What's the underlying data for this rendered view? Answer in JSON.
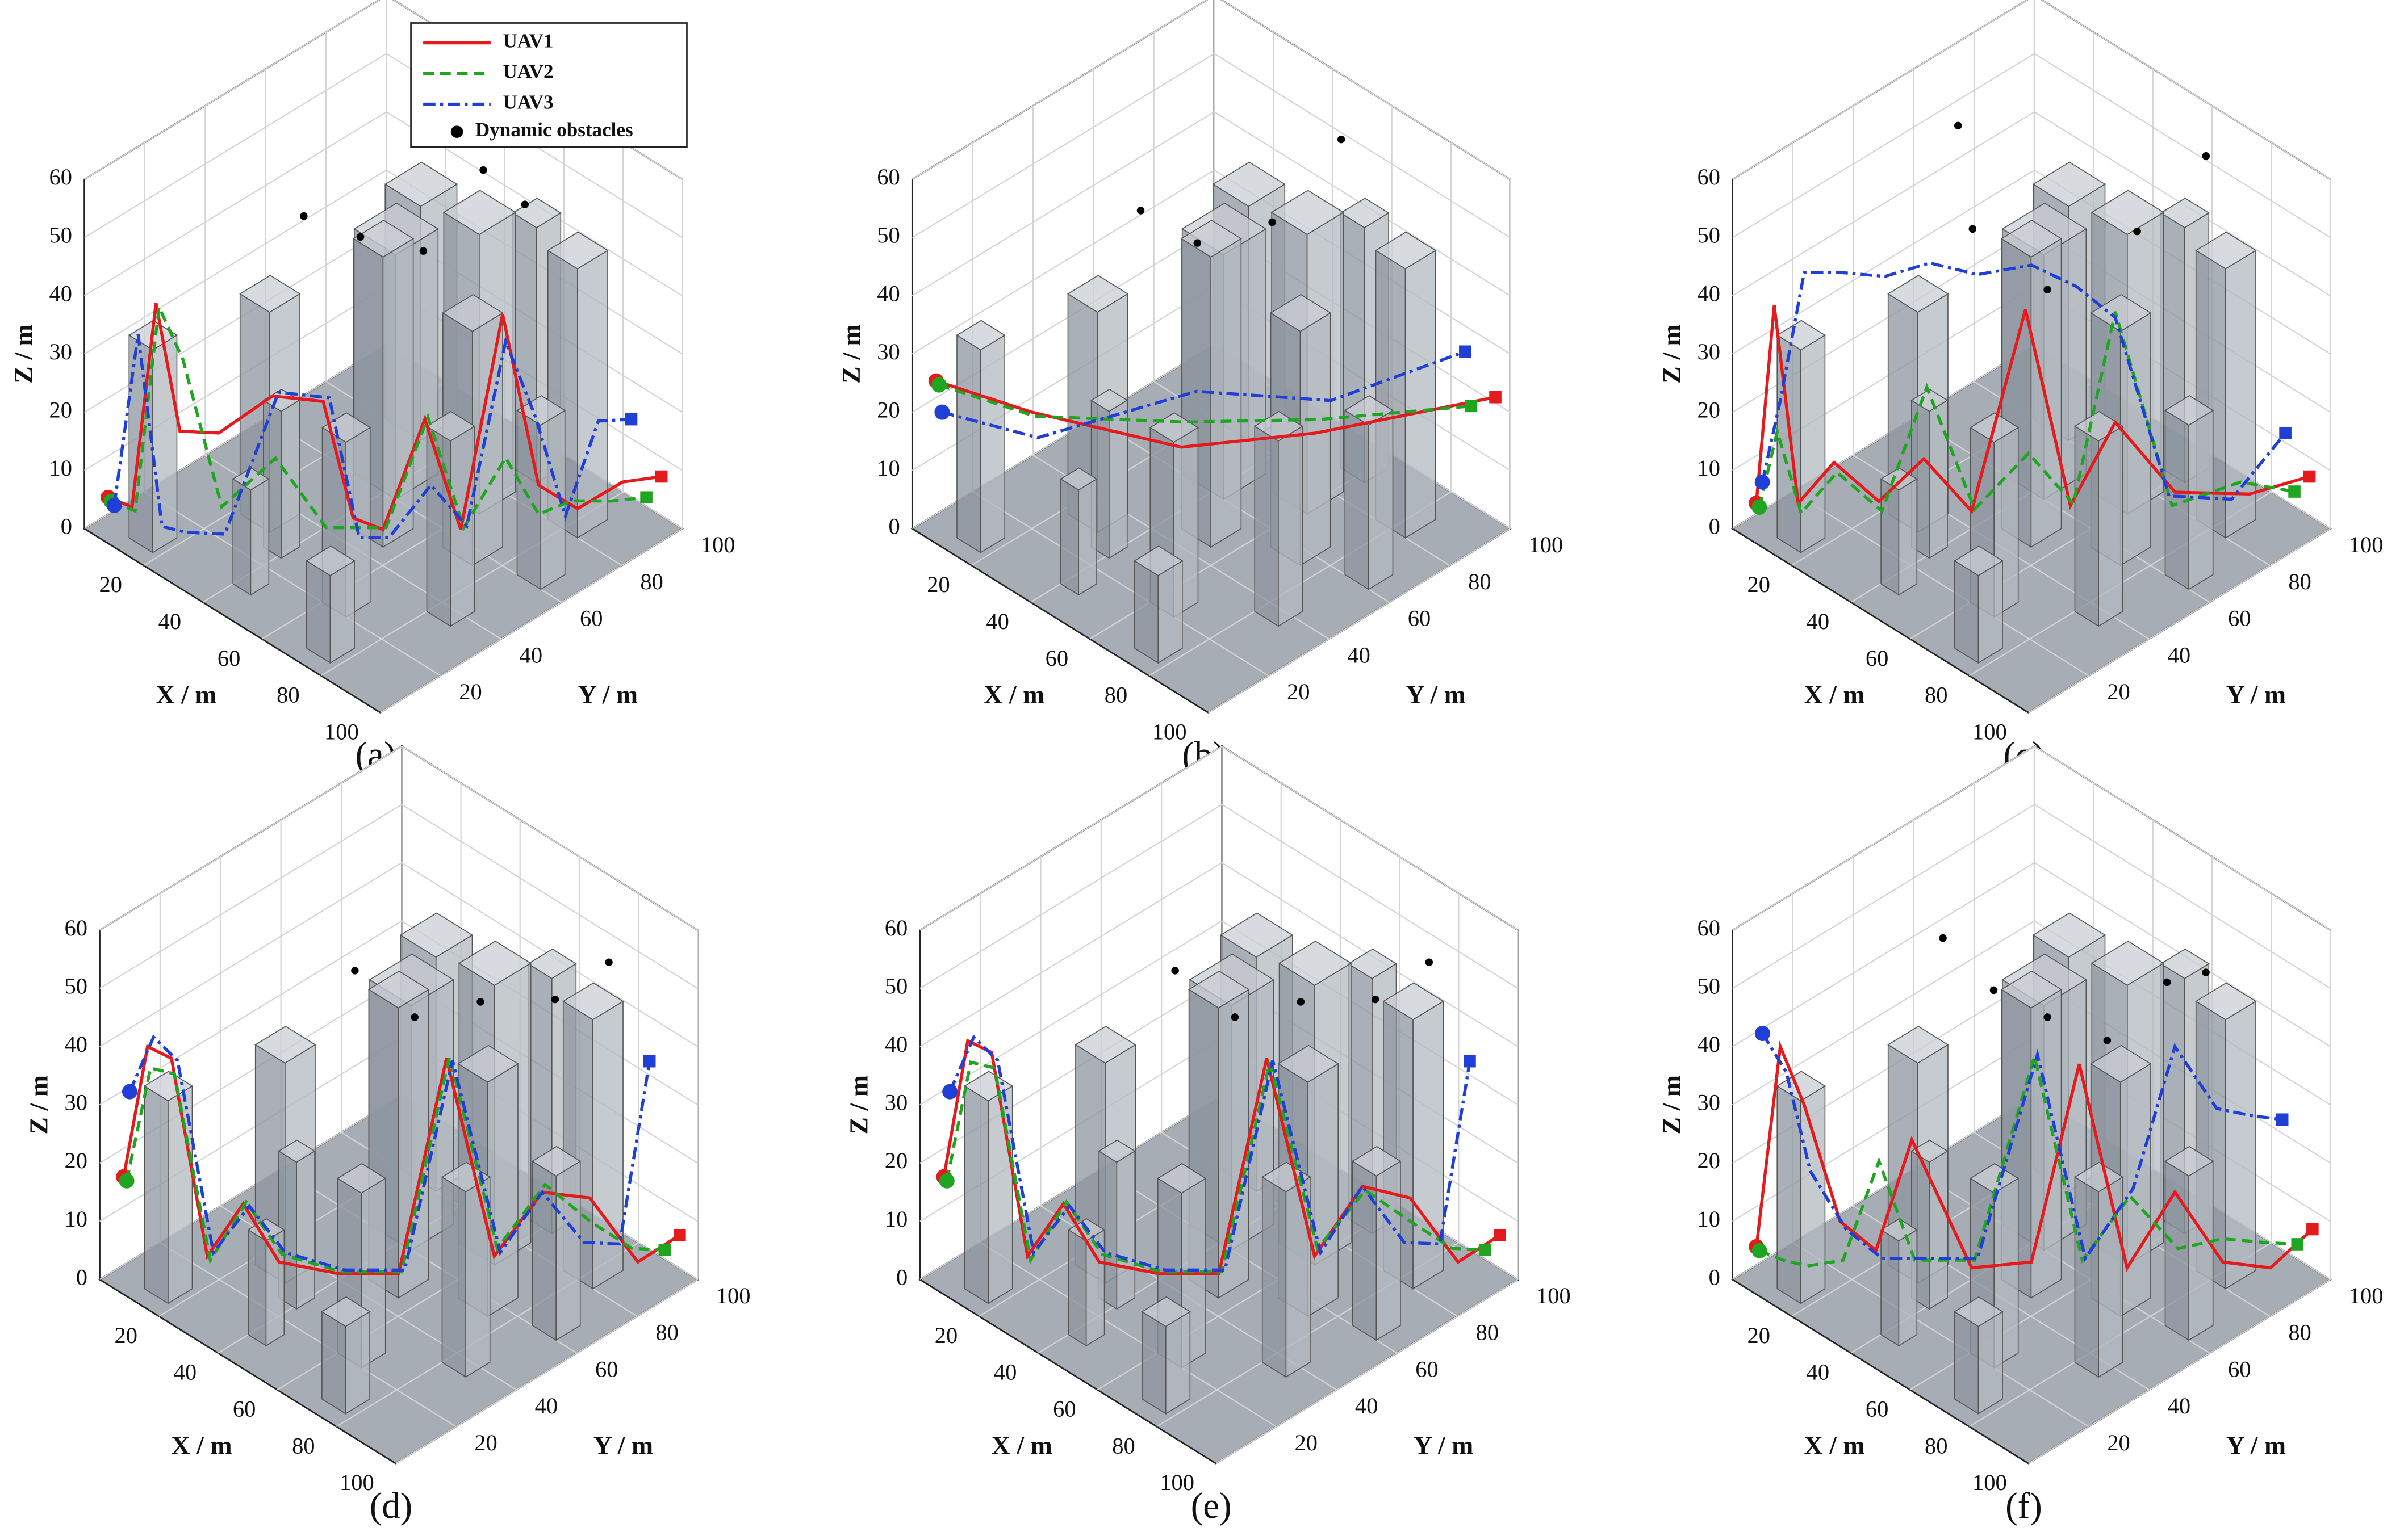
{
  "chart_data": [
    {
      "type": "line3d",
      "label": "(a)",
      "xlabel": "X / m",
      "ylabel": "Y / m",
      "zlabel": "Z / m",
      "xlim": [
        0,
        100
      ],
      "ylim": [
        0,
        100
      ],
      "zlim": [
        0,
        60
      ],
      "xticks": [
        20,
        40,
        60,
        80,
        100
      ],
      "yticks": [
        20,
        40,
        60,
        80,
        100
      ],
      "zticks": [
        0,
        10,
        20,
        30,
        40,
        50,
        60
      ],
      "grid": true,
      "legend": "upper right",
      "series": [
        {
          "name": "UAV1",
          "color": "#e41a1c",
          "line_style": "solid",
          "x": [
            5,
            10,
            14,
            18,
            25,
            35,
            45,
            50,
            55,
            62,
            68,
            75,
            80,
            85,
            90,
            95
          ],
          "y": [
            3,
            6,
            10,
            14,
            20,
            28,
            35,
            40,
            45,
            52,
            58,
            65,
            72,
            80,
            90,
            98
          ],
          "z": [
            6,
            5,
            40,
            18,
            18,
            25,
            25,
            5,
            3,
            22,
            3,
            40,
            10,
            5,
            8,
            8
          ]
        },
        {
          "name": "UAV2",
          "color": "#1fa51f",
          "line_style": "dashed",
          "x": [
            5,
            10,
            14,
            18,
            25,
            35,
            45,
            50,
            55,
            62,
            68,
            75,
            80,
            85,
            90,
            95
          ],
          "y": [
            4,
            7,
            11,
            15,
            21,
            29,
            36,
            41,
            46,
            53,
            59,
            66,
            72,
            78,
            86,
            93
          ],
          "z": [
            5,
            4,
            39,
            30,
            5,
            14,
            3,
            3,
            3,
            22,
            3,
            15,
            5,
            7,
            6,
            6
          ]
        },
        {
          "name": "UAV3",
          "color": "#1f3fd6",
          "line_style": "dashdot",
          "x": [
            5,
            10,
            14,
            18,
            25,
            35,
            45,
            50,
            55,
            62,
            68,
            75,
            80,
            85,
            90,
            95
          ],
          "y": [
            5,
            8,
            12,
            16,
            22,
            30,
            37,
            42,
            47,
            54,
            60,
            66,
            71,
            76,
            82,
            88
          ],
          "z": [
            4,
            34,
            1,
            0,
            0,
            25,
            25,
            1,
            1,
            10,
            3,
            35,
            22,
            5,
            21,
            21
          ]
        }
      ],
      "obstacles": {
        "name": "Dynamic obstacles",
        "color": "#000000",
        "x": [
          18,
          30,
          38,
          45,
          55
        ],
        "y": [
          55,
          62,
          75,
          88,
          92
        ],
        "z": [
          42,
          40,
          36,
          48,
          44
        ]
      }
    },
    {
      "type": "line3d",
      "label": "(b)",
      "xlabel": "X / m",
      "ylabel": "Y / m",
      "zlabel": "Z / m",
      "xlim": [
        0,
        100
      ],
      "ylim": [
        0,
        100
      ],
      "zlim": [
        0,
        60
      ],
      "xticks": [
        20,
        40,
        60,
        80,
        100
      ],
      "yticks": [
        20,
        40,
        60,
        80,
        100
      ],
      "zticks": [
        0,
        10,
        20,
        30,
        40,
        50,
        60
      ],
      "grid": true,
      "series": [
        {
          "color": "#e41a1c",
          "line_style": "solid",
          "x": [
            5,
            20,
            45,
            70,
            95
          ],
          "y": [
            3,
            20,
            45,
            65,
            100
          ],
          "z": [
            26,
            20,
            14,
            18,
            21
          ]
        },
        {
          "color": "#1fa51f",
          "line_style": "dashed",
          "x": [
            5,
            20,
            45,
            70,
            95
          ],
          "y": [
            4,
            21,
            46,
            66,
            92
          ],
          "z": [
            25,
            19,
            18,
            20,
            22
          ]
        },
        {
          "color": "#1f3fd6",
          "line_style": "dashdot",
          "x": [
            5,
            20,
            45,
            70,
            95
          ],
          "y": [
            5,
            22,
            50,
            70,
            90
          ],
          "z": [
            20,
            15,
            22,
            22,
            32
          ]
        }
      ],
      "obstacles": {
        "color": "#000000",
        "x": [
          18,
          30,
          40,
          48
        ],
        "y": [
          58,
          65,
          80,
          95
        ],
        "z": [
          42,
          38,
          40,
          52
        ]
      }
    },
    {
      "type": "line3d",
      "label": "(c)",
      "xlabel": "X / m",
      "ylabel": "Y / m",
      "zlabel": "Z / m",
      "xlim": [
        0,
        100
      ],
      "ylim": [
        0,
        100
      ],
      "zlim": [
        0,
        60
      ],
      "xticks": [
        20,
        40,
        60,
        80,
        100
      ],
      "yticks": [
        20,
        40,
        60,
        80,
        100
      ],
      "zticks": [
        0,
        10,
        20,
        30,
        40,
        50,
        60
      ],
      "grid": true,
      "series": [
        {
          "color": "#e41a1c",
          "line_style": "solid",
          "x": [
            5,
            8,
            12,
            18,
            25,
            32,
            40,
            48,
            55,
            62,
            72,
            85,
            95
          ],
          "y": [
            3,
            6,
            10,
            16,
            24,
            32,
            40,
            50,
            58,
            66,
            76,
            88,
            98
          ],
          "z": [
            5,
            39,
            5,
            12,
            5,
            12,
            3,
            37,
            3,
            17,
            5,
            5,
            8
          ]
        },
        {
          "color": "#1fa51f",
          "line_style": "dashed",
          "x": [
            5,
            8,
            12,
            18,
            25,
            32,
            40,
            48,
            55,
            62,
            72,
            85,
            95
          ],
          "y": [
            4,
            7,
            11,
            17,
            25,
            33,
            41,
            51,
            59,
            66,
            75,
            85,
            93
          ],
          "z": [
            4,
            17,
            3,
            10,
            3,
            24,
            3,
            12,
            3,
            36,
            3,
            8,
            7
          ]
        },
        {
          "color": "#1f3fd6",
          "line_style": "dashdot",
          "x": [
            5,
            8,
            12,
            18,
            25,
            32,
            40,
            48,
            55,
            62,
            72,
            85,
            95
          ],
          "y": [
            5,
            8,
            12,
            18,
            26,
            34,
            42,
            52,
            60,
            66,
            74,
            82,
            90
          ],
          "z": [
            8,
            22,
            44,
            44,
            43,
            45,
            43,
            44,
            40,
            35,
            5,
            6,
            18
          ]
        }
      ],
      "obstacles": {
        "color": "#000000",
        "x": [
          15,
          25,
          35,
          50,
          60
        ],
        "y": [
          60,
          55,
          70,
          85,
          98
        ],
        "z": [
          55,
          42,
          30,
          40,
          52
        ]
      }
    },
    {
      "type": "line3d",
      "label": "(d)",
      "xlabel": "X / m",
      "ylabel": "Y / m",
      "zlabel": "Z / m",
      "xlim": [
        0,
        100
      ],
      "ylim": [
        0,
        100
      ],
      "zlim": [
        0,
        60
      ],
      "xticks": [
        20,
        40,
        60,
        80,
        100
      ],
      "yticks": [
        20,
        40,
        60,
        80,
        100
      ],
      "zticks": [
        0,
        10,
        20,
        30,
        40,
        50,
        60
      ],
      "grid": true,
      "series": [
        {
          "color": "#e41a1c",
          "line_style": "solid",
          "x": [
            3,
            8,
            12,
            18,
            24,
            30,
            40,
            50,
            58,
            66,
            74,
            82,
            90,
            96
          ],
          "y": [
            5,
            8,
            12,
            18,
            24,
            30,
            40,
            50,
            58,
            66,
            74,
            82,
            90,
            98
          ],
          "z": [
            17,
            40,
            38,
            4,
            13,
            3,
            1,
            1,
            38,
            4,
            15,
            14,
            3,
            7
          ]
        },
        {
          "color": "#1fa51f",
          "line_style": "dashed",
          "x": [
            3,
            8,
            12,
            18,
            24,
            30,
            40,
            50,
            58,
            66,
            74,
            82,
            90,
            96
          ],
          "y": [
            6,
            9,
            13,
            19,
            25,
            31,
            41,
            51,
            59,
            67,
            75,
            82,
            88,
            93
          ],
          "z": [
            16,
            36,
            35,
            3,
            13,
            4,
            1,
            1,
            38,
            5,
            16,
            10,
            6,
            6
          ]
        },
        {
          "color": "#1f3fd6",
          "line_style": "dashdot",
          "x": [
            3,
            8,
            12,
            18,
            24,
            30,
            40,
            50,
            58,
            66,
            74,
            82,
            90,
            96
          ],
          "y": [
            7,
            10,
            14,
            20,
            26,
            32,
            42,
            52,
            60,
            68,
            74,
            80,
            84,
            88
          ],
          "z": [
            31,
            41,
            37,
            4,
            12,
            4,
            1,
            1,
            37,
            4,
            15,
            7,
            8,
            40
          ]
        }
      ],
      "obstacles": {
        "color": "#000000",
        "x": [
          25,
          35,
          45,
          60,
          70
        ],
        "y": [
          60,
          70,
          82,
          92,
          100
        ],
        "z": [
          42,
          34,
          36,
          38,
          45
        ]
      }
    },
    {
      "type": "line3d",
      "label": "(e)",
      "xlabel": "X / m",
      "ylabel": "Y / m",
      "zlabel": "Z / m",
      "xlim": [
        0,
        100
      ],
      "ylim": [
        0,
        100
      ],
      "zlim": [
        0,
        60
      ],
      "xticks": [
        20,
        40,
        60,
        80,
        100
      ],
      "yticks": [
        20,
        40,
        60,
        80,
        100
      ],
      "zticks": [
        0,
        10,
        20,
        30,
        40,
        50,
        60
      ],
      "grid": true,
      "series": [
        {
          "color": "#e41a1c",
          "line_style": "solid",
          "x": [
            3,
            8,
            12,
            18,
            24,
            30,
            40,
            50,
            58,
            66,
            74,
            82,
            90,
            96
          ],
          "y": [
            5,
            8,
            12,
            18,
            24,
            30,
            40,
            50,
            58,
            66,
            74,
            82,
            90,
            98
          ],
          "z": [
            17,
            41,
            39,
            4,
            13,
            3,
            1,
            1,
            38,
            4,
            16,
            14,
            3,
            7
          ]
        },
        {
          "color": "#1fa51f",
          "line_style": "dashed",
          "x": [
            3,
            8,
            12,
            18,
            24,
            30,
            40,
            50,
            58,
            66,
            74,
            82,
            90,
            96
          ],
          "y": [
            6,
            9,
            13,
            19,
            25,
            31,
            41,
            51,
            59,
            67,
            75,
            82,
            88,
            93
          ],
          "z": [
            16,
            37,
            36,
            3,
            13,
            4,
            1,
            1,
            37,
            5,
            15,
            10,
            6,
            6
          ]
        },
        {
          "color": "#1f3fd6",
          "line_style": "dashdot",
          "x": [
            3,
            8,
            12,
            18,
            24,
            30,
            40,
            50,
            58,
            66,
            74,
            82,
            90,
            96
          ],
          "y": [
            7,
            10,
            14,
            20,
            26,
            32,
            42,
            52,
            60,
            68,
            74,
            80,
            84,
            88
          ],
          "z": [
            31,
            41,
            37,
            4,
            12,
            4,
            1,
            1,
            37,
            4,
            16,
            7,
            8,
            40
          ]
        }
      ],
      "obstacles": {
        "color": "#000000",
        "x": [
          25,
          35,
          45,
          60,
          70
        ],
        "y": [
          60,
          70,
          82,
          92,
          100
        ],
        "z": [
          42,
          34,
          36,
          38,
          45
        ]
      }
    },
    {
      "type": "line3d",
      "label": "(f)",
      "xlabel": "X / m",
      "ylabel": "Y / m",
      "zlabel": "Z / m",
      "xlim": [
        0,
        100
      ],
      "ylim": [
        0,
        100
      ],
      "zlim": [
        0,
        60
      ],
      "xticks": [
        20,
        40,
        60,
        80,
        100
      ],
      "yticks": [
        20,
        40,
        60,
        80,
        100
      ],
      "zticks": [
        0,
        10,
        20,
        30,
        40,
        50,
        60
      ],
      "grid": true,
      "series": [
        {
          "color": "#e41a1c",
          "line_style": "solid",
          "x": [
            3,
            8,
            12,
            18,
            24,
            30,
            40,
            50,
            58,
            66,
            74,
            82,
            90,
            96
          ],
          "y": [
            5,
            8,
            12,
            18,
            24,
            30,
            40,
            50,
            58,
            66,
            74,
            82,
            90,
            98
          ],
          "z": [
            5,
            40,
            30,
            10,
            5,
            24,
            2,
            3,
            37,
            2,
            15,
            3,
            2,
            8
          ]
        },
        {
          "color": "#1fa51f",
          "line_style": "dashed",
          "x": [
            3,
            8,
            12,
            18,
            24,
            30,
            40,
            50,
            58,
            66,
            74,
            82,
            90,
            96
          ],
          "y": [
            6,
            9,
            13,
            19,
            25,
            31,
            41,
            51,
            59,
            67,
            75,
            82,
            88,
            93
          ],
          "z": [
            4,
            3,
            2,
            3,
            20,
            3,
            3,
            38,
            3,
            14,
            5,
            7,
            7,
            7
          ]
        },
        {
          "color": "#1f3fd6",
          "line_style": "dashdot",
          "x": [
            3,
            8,
            12,
            18,
            24,
            30,
            40,
            50,
            58,
            66,
            74,
            82,
            90,
            96
          ],
          "y": [
            7,
            10,
            14,
            20,
            26,
            32,
            42,
            52,
            60,
            68,
            74,
            80,
            84,
            88
          ],
          "z": [
            41,
            35,
            18,
            8,
            3,
            3,
            3,
            38,
            3,
            15,
            40,
            30,
            30,
            30
          ]
        }
      ],
      "obstacles": {
        "color": "#000000",
        "x": [
          15,
          25,
          35,
          45,
          55,
          62
        ],
        "y": [
          55,
          62,
          70,
          80,
          90,
          96
        ],
        "z": [
          46,
          38,
          34,
          30,
          40,
          42
        ]
      }
    }
  ]
}
